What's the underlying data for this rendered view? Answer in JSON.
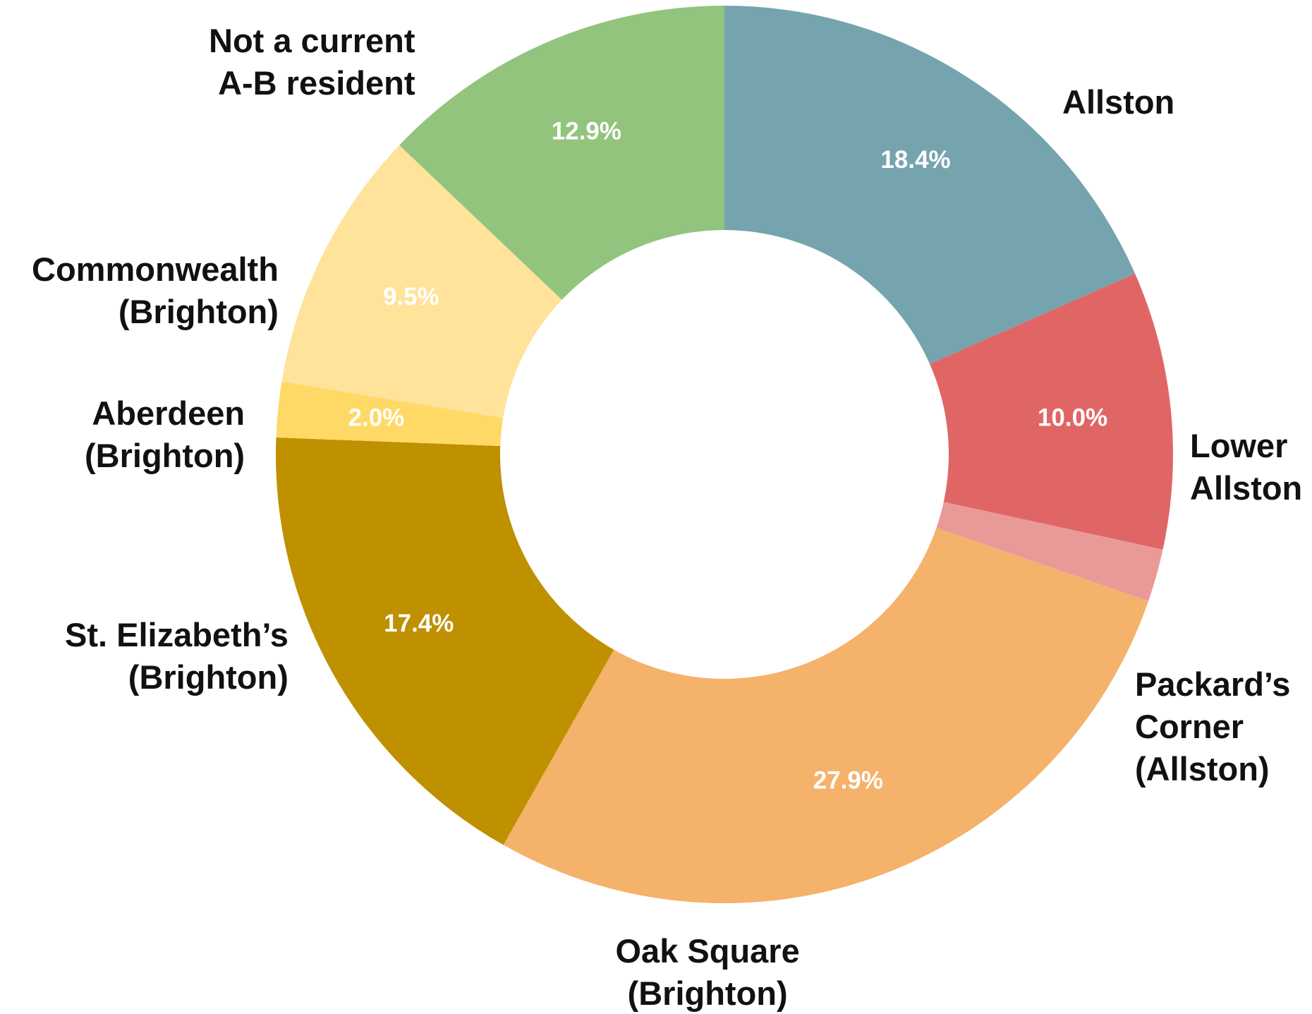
{
  "chart_data": {
    "type": "donut",
    "categories": [
      "Allston",
      "Lower\nAllston",
      "Packard’s\nCorner\n(Allston)",
      "Oak Square\n(Brighton)",
      "St. Elizabeth’s\n(Brighton)",
      "Aberdeen\n(Brighton)",
      "Commonwealth\n(Brighton)",
      "Not a current\nA-B resident"
    ],
    "values": [
      18.4,
      10.0,
      1.9,
      27.9,
      17.4,
      2.0,
      9.5,
      12.9
    ],
    "value_labels": [
      "18.4%",
      "10.0%",
      null,
      "27.9%",
      "17.4%",
      "2.0%",
      "9.5%",
      "12.9%"
    ],
    "colors": [
      "#76a4ae",
      "#e06666",
      "#ea9999",
      "#f4b26b",
      "#bf9000",
      "#ffd966",
      "#ffe39b",
      "#93c47d"
    ]
  }
}
